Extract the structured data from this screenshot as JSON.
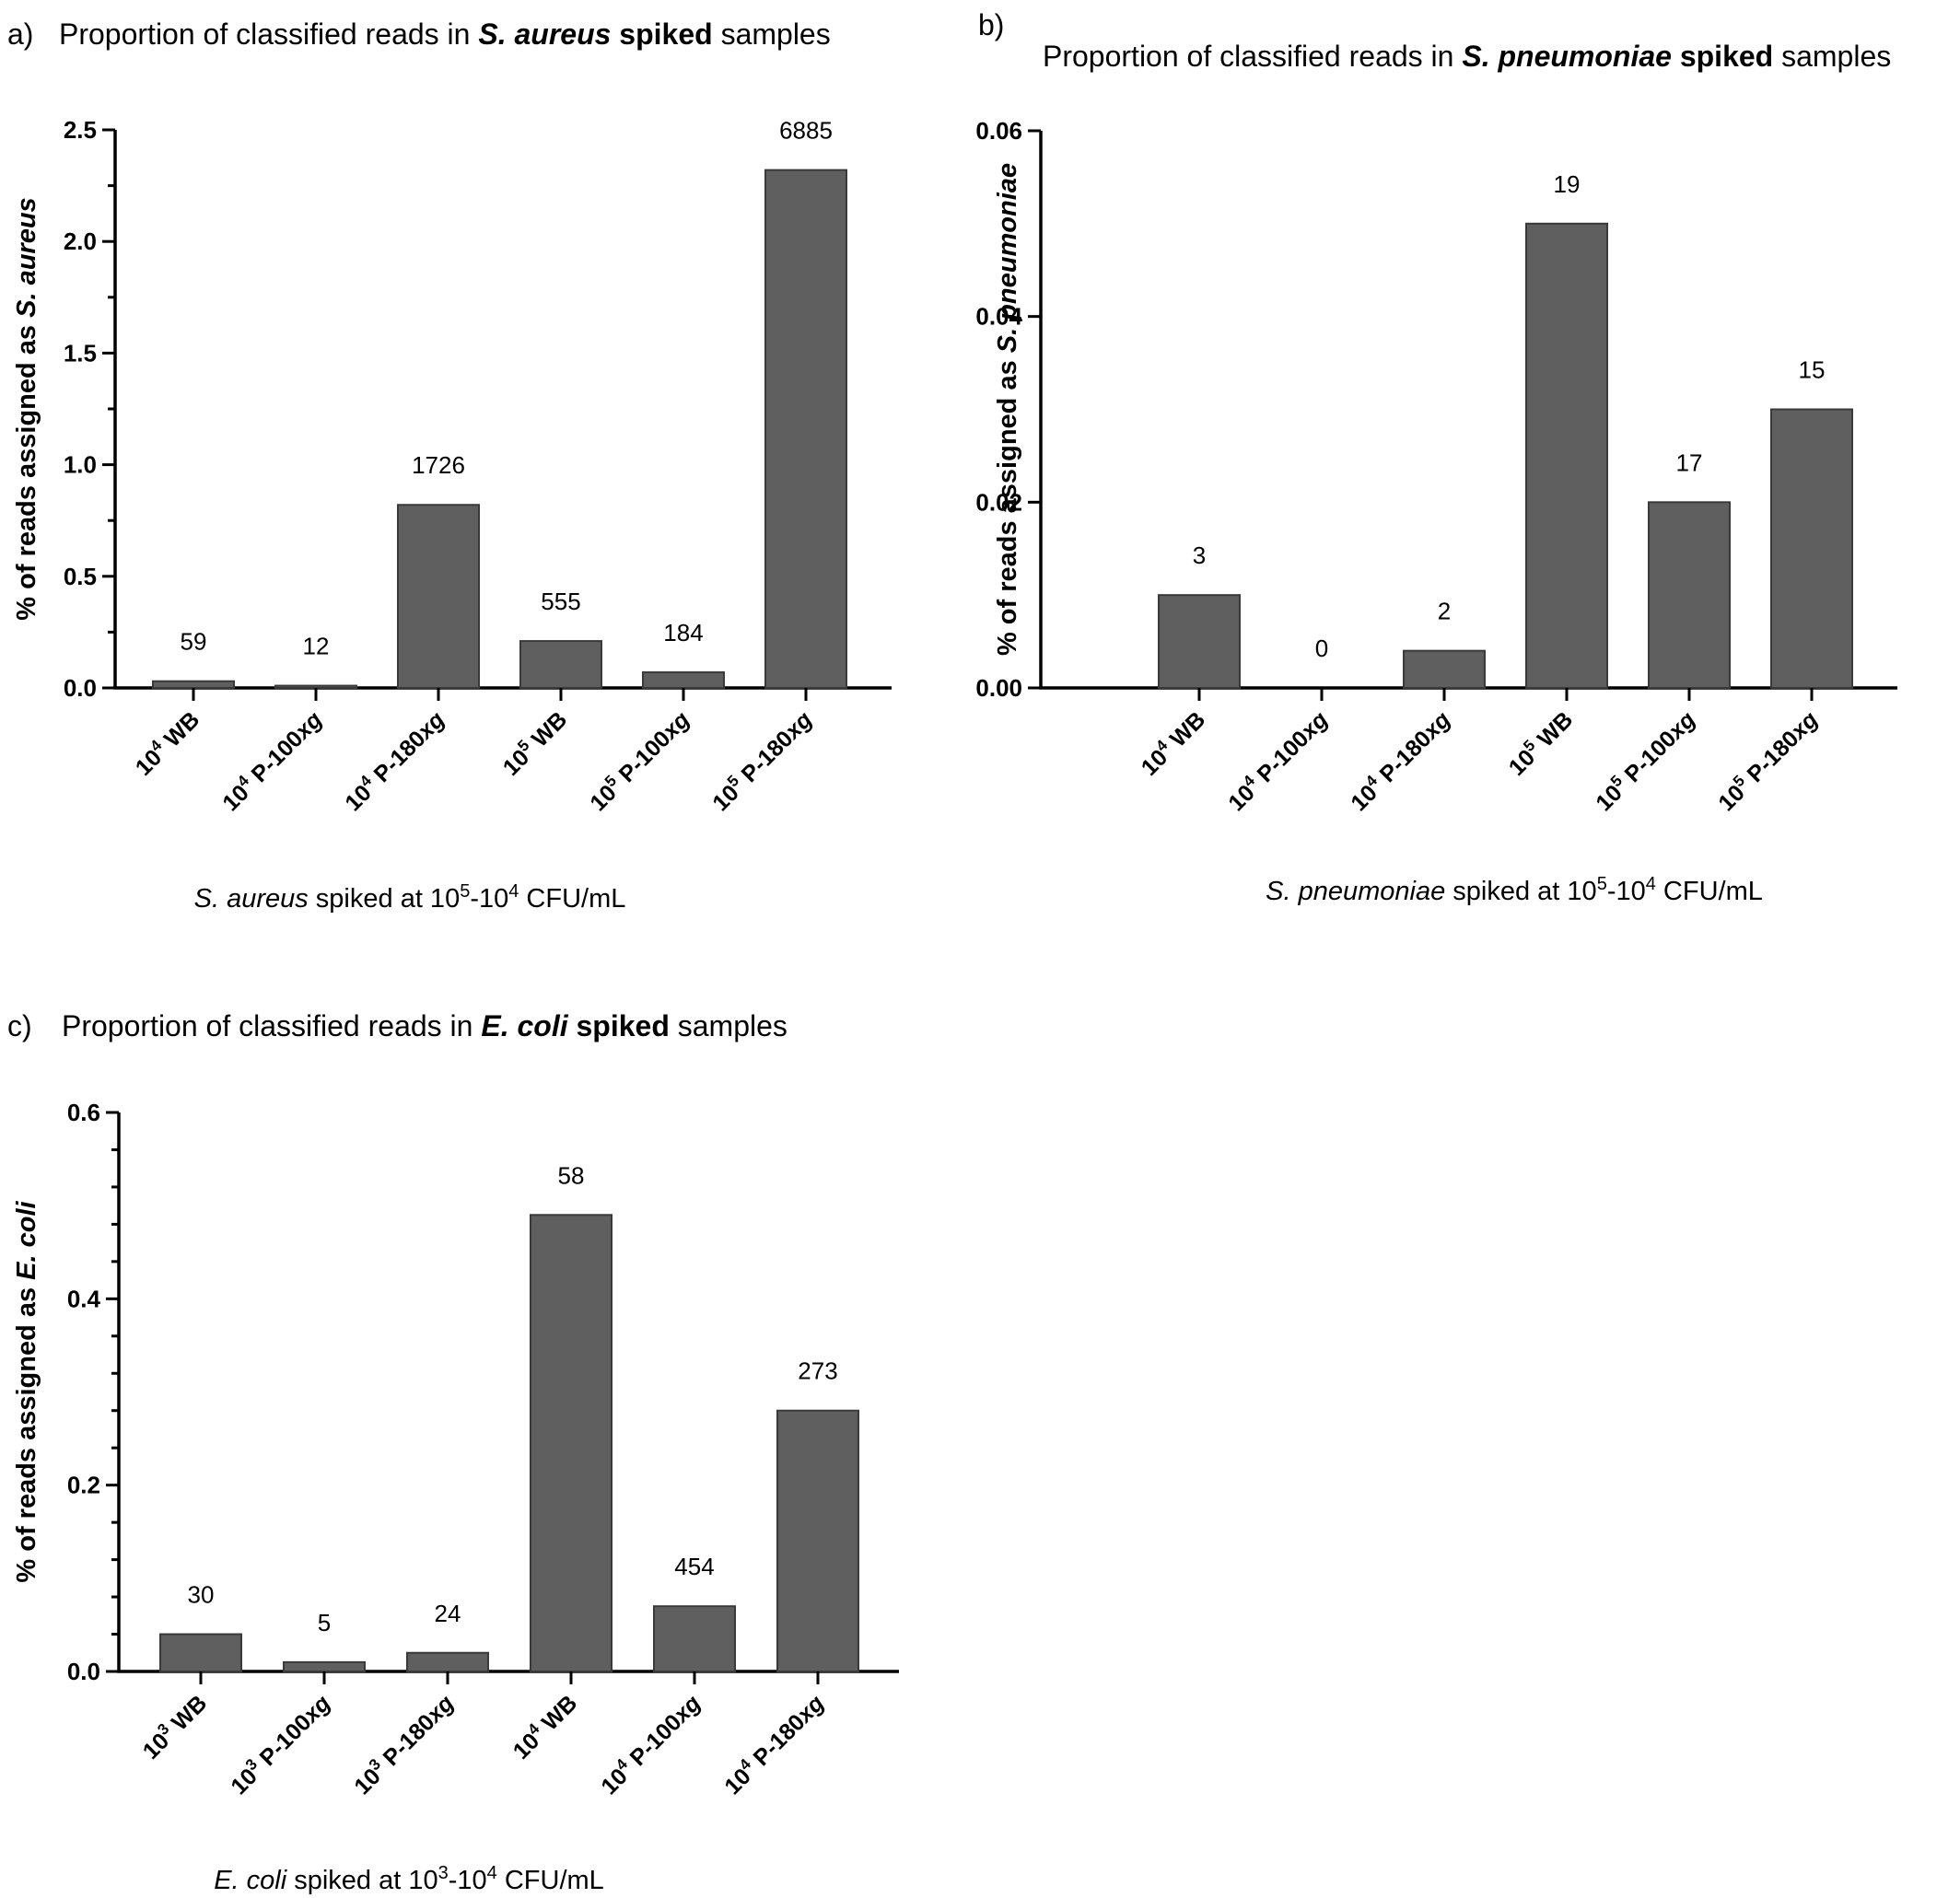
{
  "chart_data": [
    {
      "type": "bar",
      "panel": "a)",
      "title": {
        "pre": "Proportion of classified reads in ",
        "organism": "S. aureus",
        "bold": " spiked",
        "post": " samples"
      },
      "ylabel": {
        "pre": "% of reads assigned as ",
        "organism": "S. aureus"
      },
      "xlabel": {
        "organism": "S. aureus",
        "pre": " spiked at 10",
        "sup1": "5",
        "mid": "-10",
        "sup2": "4",
        "post": " CFU/mL"
      },
      "ylim": [
        0,
        2.5
      ],
      "yticks": [
        "0.0",
        "0.5",
        "1.0",
        "1.5",
        "2.0",
        "2.5"
      ],
      "minor_ticks": true,
      "categories": [
        {
          "base": "10",
          "exp": "4",
          "rest": " WB",
          "italic": ""
        },
        {
          "base": "10",
          "exp": "4",
          "rest": " P-100",
          "italic": "xg"
        },
        {
          "base": "10",
          "exp": "4",
          "rest": " P-180",
          "italic": "xg"
        },
        {
          "base": "10",
          "exp": "5",
          "rest": " WB",
          "italic": ""
        },
        {
          "base": "10",
          "exp": "5",
          "rest": " P-100",
          "italic": "xg"
        },
        {
          "base": "10",
          "exp": "5",
          "rest": " P-180",
          "italic": "xg"
        }
      ],
      "values": [
        0.03,
        0.01,
        0.82,
        0.21,
        0.07,
        2.32
      ],
      "data_labels": [
        "59",
        "12",
        "1726",
        "555",
        "184",
        "6885"
      ]
    },
    {
      "type": "bar",
      "panel": "b)",
      "title": {
        "pre": "Proportion of classified reads in ",
        "organism": "S. pneumoniae",
        "bold": " spiked",
        "post": " samples"
      },
      "ylabel": {
        "pre": "% of reads assigned as ",
        "organism": "S. pneumoniae"
      },
      "xlabel": {
        "organism": "S. pneumoniae",
        "pre": " spiked at 10",
        "sup1": "5",
        "mid": "-10",
        "sup2": "4",
        "post": " CFU/mL"
      },
      "ylim": [
        0,
        0.06
      ],
      "yticks": [
        "0.00",
        "0.02",
        "0.04",
        "0.06"
      ],
      "minor_ticks": false,
      "categories": [
        {
          "base": "10",
          "exp": "4",
          "rest": " WB",
          "italic": ""
        },
        {
          "base": "10",
          "exp": "4",
          "rest": " P-100",
          "italic": "xg"
        },
        {
          "base": "10",
          "exp": "4",
          "rest": " P-180",
          "italic": "xg"
        },
        {
          "base": "10",
          "exp": "5",
          "rest": " WB",
          "italic": ""
        },
        {
          "base": "10",
          "exp": "5",
          "rest": " P-100",
          "italic": "xg"
        },
        {
          "base": "10",
          "exp": "5",
          "rest": " P-180",
          "italic": "xg"
        }
      ],
      "values": [
        0.01,
        0.0,
        0.004,
        0.05,
        0.02,
        0.03
      ],
      "data_labels": [
        "3",
        "0",
        "2",
        "19",
        "17",
        "15"
      ]
    },
    {
      "type": "bar",
      "panel": "c)",
      "title": {
        "pre": "Proportion of classified reads in ",
        "organism": "E. coli",
        "bold": " spiked",
        "post": " samples"
      },
      "ylabel": {
        "pre": "% of reads assigned as ",
        "organism": "E. coli"
      },
      "xlabel": {
        "organism": "E. coli",
        "pre": " spiked at 10",
        "sup1": "3",
        "mid": "-10",
        "sup2": "4",
        "post": " CFU/mL"
      },
      "ylim": [
        0,
        0.6
      ],
      "yticks": [
        "0.0",
        "0.2",
        "0.4",
        "0.6"
      ],
      "minor_ticks": true,
      "categories": [
        {
          "base": "10",
          "exp": "3",
          "rest": " WB",
          "italic": ""
        },
        {
          "base": "10",
          "exp": "3",
          "rest": " P-100",
          "italic": "xg"
        },
        {
          "base": "10",
          "exp": "3",
          "rest": " P-180",
          "italic": "xg"
        },
        {
          "base": "10",
          "exp": "4",
          "rest": " WB",
          "italic": ""
        },
        {
          "base": "10",
          "exp": "4",
          "rest": "  P-100",
          "italic": "xg"
        },
        {
          "base": "10",
          "exp": "4",
          "rest": " P-180",
          "italic": "xg"
        }
      ],
      "values": [
        0.04,
        0.01,
        0.02,
        0.49,
        0.07,
        0.28
      ],
      "data_labels": [
        "30",
        "5",
        "24",
        "58",
        "454",
        "273"
      ]
    }
  ]
}
